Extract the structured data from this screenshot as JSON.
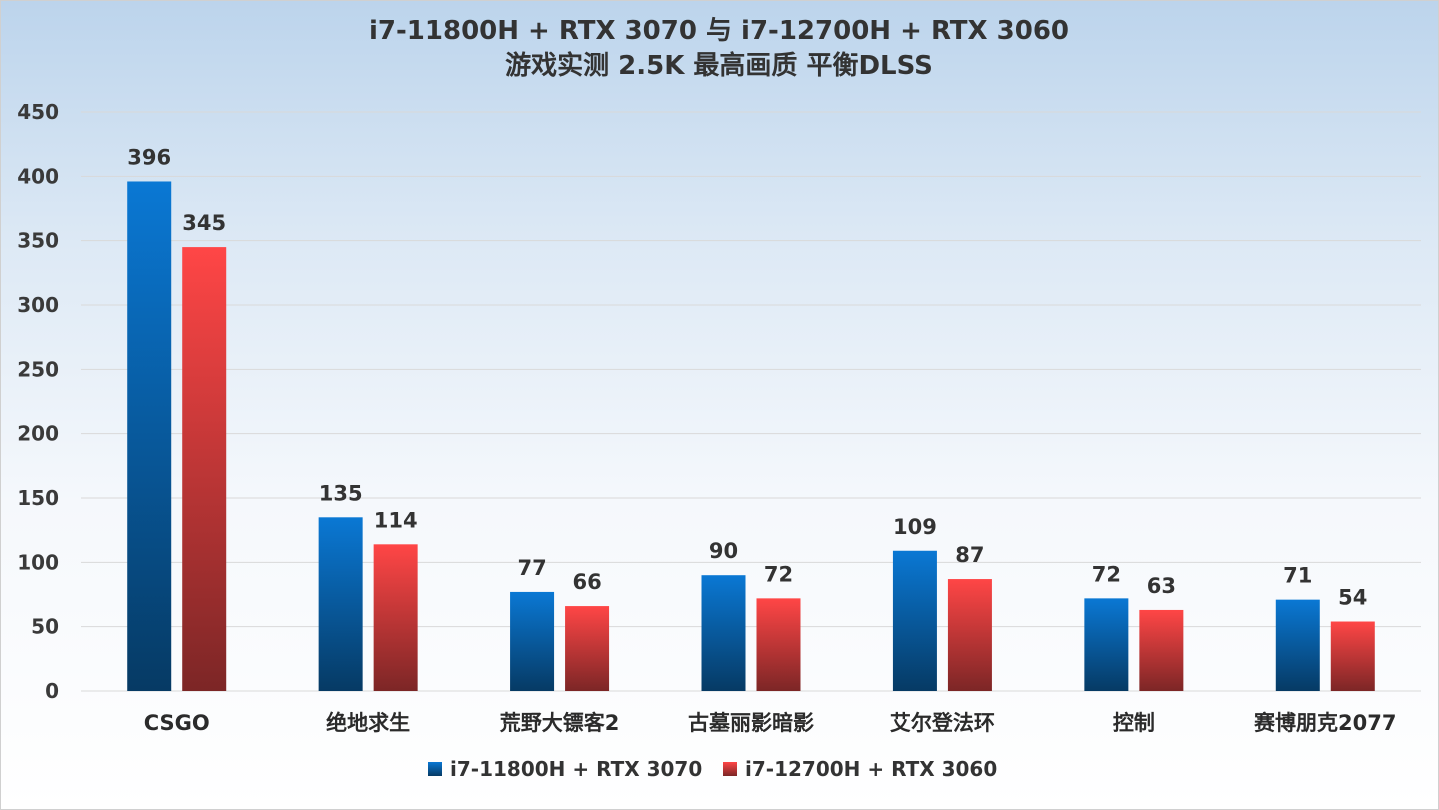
{
  "chart_data": {
    "type": "bar",
    "title": "i7-11800H + RTX 3070 与 i7-12700H + RTX 3060",
    "subtitle": "游戏实测 2.5K 最高画质 平衡DLSS",
    "categories": [
      "CSGO",
      "绝地求生",
      "荒野大镖客2",
      "古墓丽影暗影",
      "艾尔登法环",
      "控制",
      "赛博朋克2077"
    ],
    "series": [
      {
        "name": "i7-11800H + RTX 3070",
        "values": [
          396,
          135,
          77,
          90,
          109,
          72,
          71
        ],
        "color_top": "#0a78d4",
        "color_bottom": "#063a64"
      },
      {
        "name": "i7-12700H + RTX 3060",
        "values": [
          345,
          114,
          66,
          72,
          87,
          63,
          54
        ],
        "color_top": "#ff4646",
        "color_bottom": "#7c2626"
      }
    ],
    "ylim": [
      0,
      450
    ],
    "yticks": [
      0,
      50,
      100,
      150,
      200,
      250,
      300,
      350,
      400,
      450
    ],
    "grid": true,
    "legend_position": "bottom-center",
    "data_labels": true
  }
}
